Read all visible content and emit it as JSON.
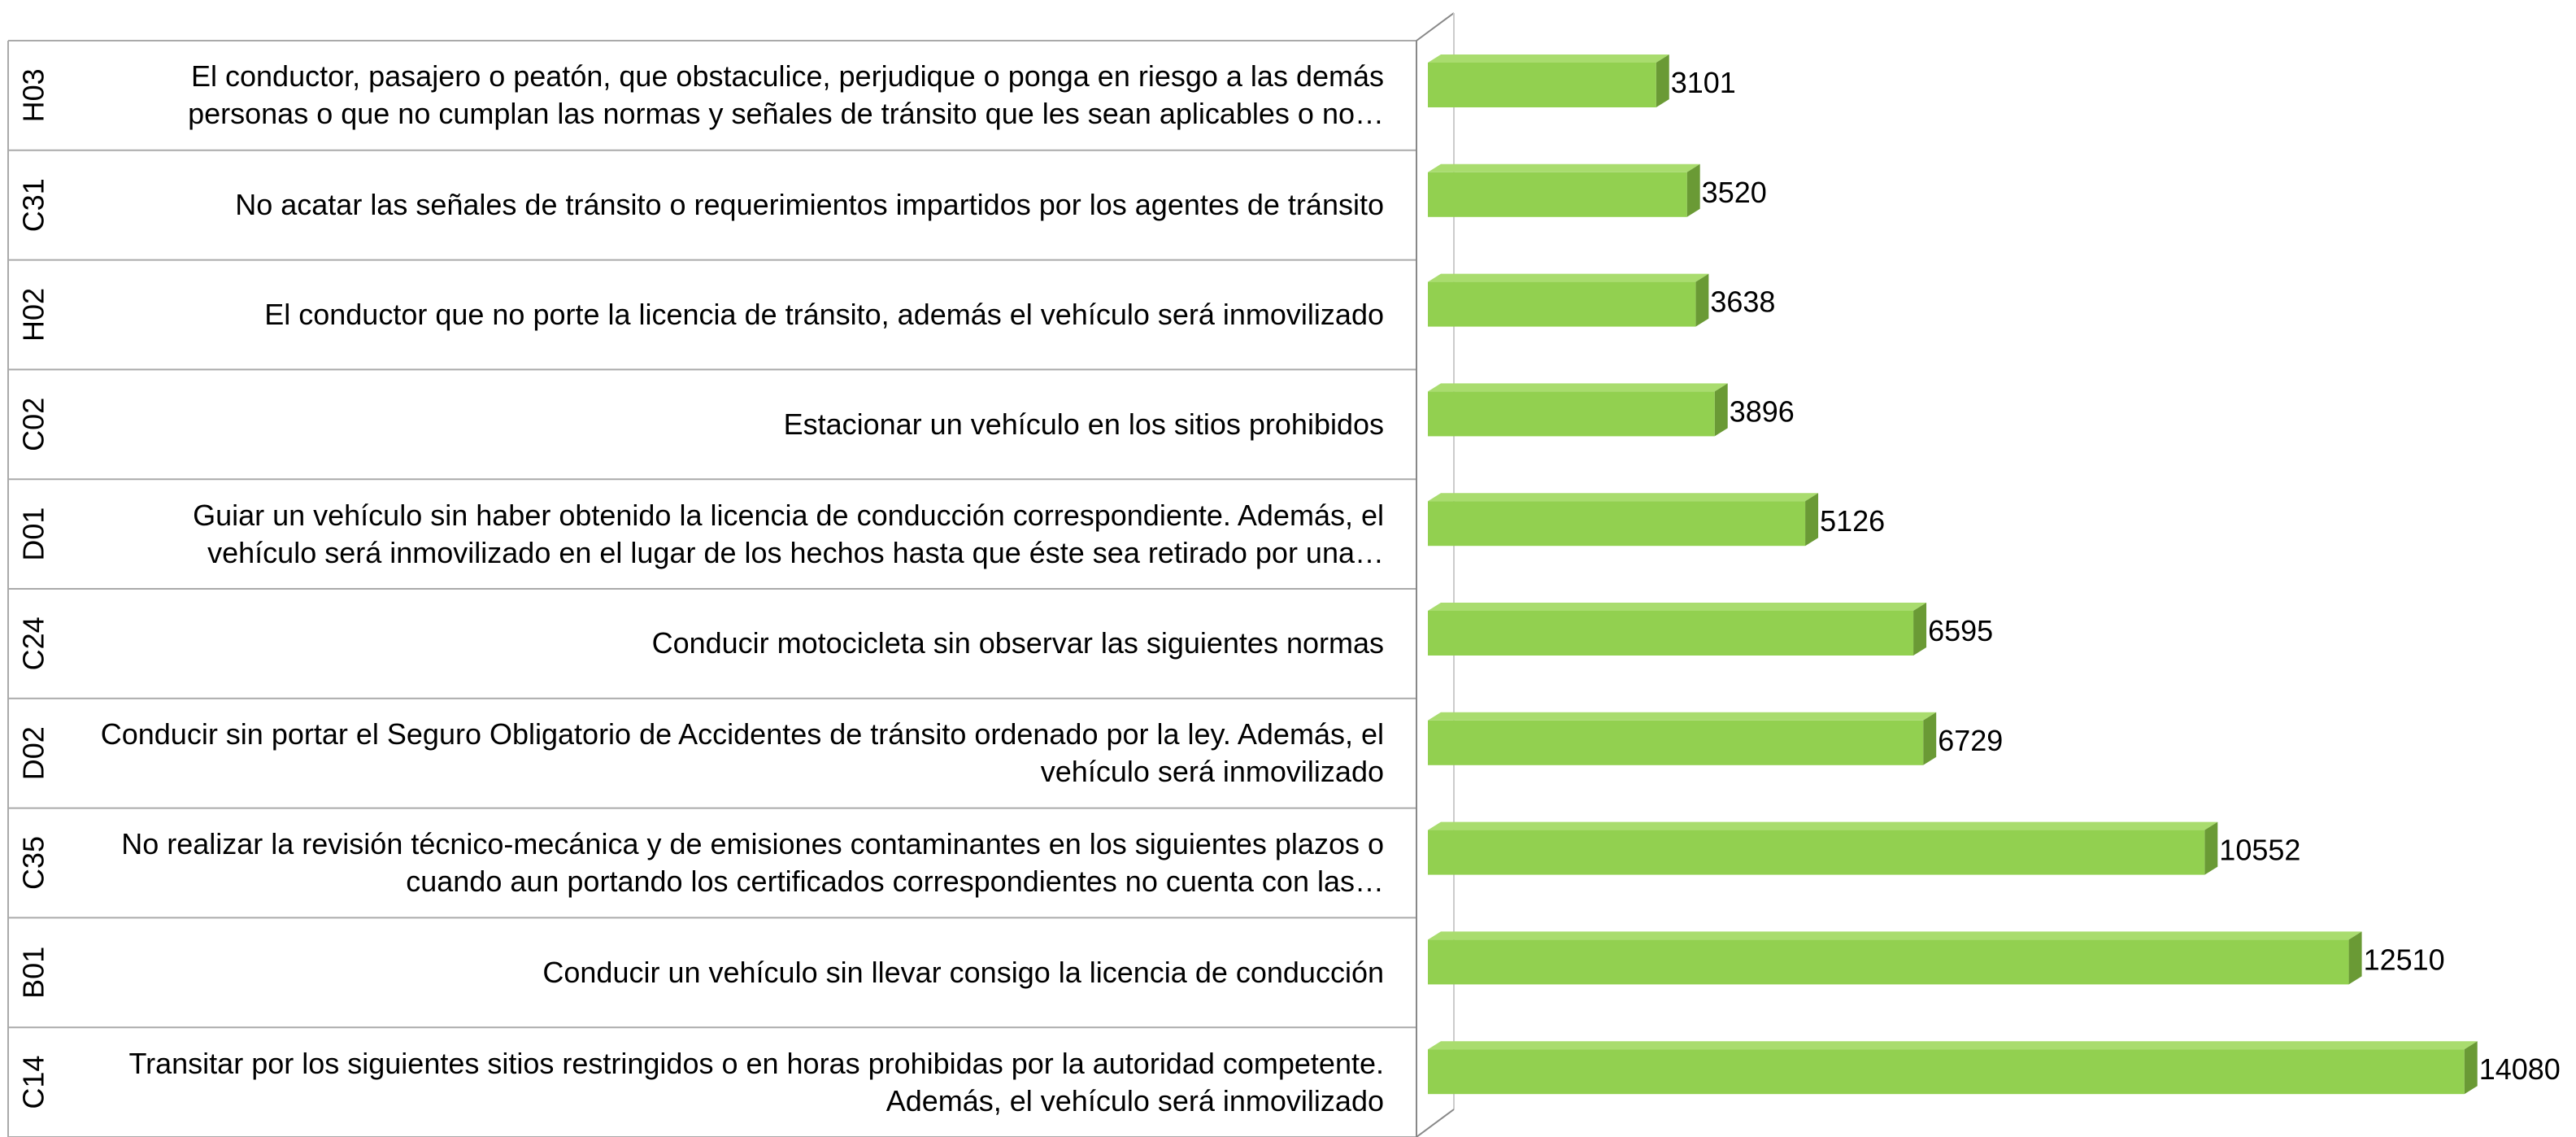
{
  "chart_data": {
    "type": "bar3d-horizontal",
    "codes": [
      "H03",
      "C31",
      "H02",
      "C02",
      "D01",
      "C24",
      "D02",
      "C35",
      "B01",
      "C14"
    ],
    "categories": [
      "El conductor, pasajero o peatón, que obstaculice, perjudique o ponga en riesgo a las demás personas o que no cumplan las normas y señales de tránsito que les sean aplicables o no…",
      "No acatar las señales de tránsito o requerimientos impartidos por los agentes de tránsito",
      "El conductor que no porte la licencia de tránsito, además el vehículo será inmovilizado",
      "Estacionar un vehículo en los sitios prohibidos",
      "Guiar un vehículo sin haber obtenido la licencia de conducción correspondiente. Además, el vehículo será inmovilizado en el lugar de los hechos hasta que éste sea retirado por una…",
      "Conducir motocicleta sin observar las siguientes normas",
      "Conducir sin portar el Seguro Obligatorio de Accidentes de tránsito ordenado por la ley. Además, el vehículo será inmovilizado",
      "No realizar la revisión técnico-mecánica y de emisiones contaminantes en los siguientes plazos o cuando aun portando los certificados correspondientes no cuenta con las…",
      "Conducir un vehículo sin llevar consigo la licencia de conducción",
      "Transitar por los siguientes sitios restringidos o en horas prohibidas por la autoridad competente.  Además, el vehículo será inmovilizado"
    ],
    "values": [
      3101,
      3520,
      3638,
      3896,
      5126,
      6595,
      6729,
      10552,
      12510,
      14080
    ],
    "color": "#92d050",
    "xlim": [
      0,
      15000
    ]
  }
}
